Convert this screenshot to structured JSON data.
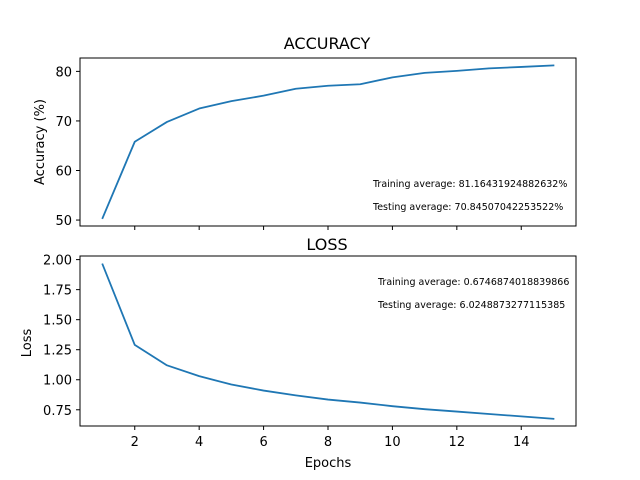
{
  "chart_data": [
    {
      "type": "line",
      "title": "ACCURACY",
      "xlabel": "",
      "ylabel": "Accuracy (%)",
      "x": [
        1,
        2,
        3,
        4,
        5,
        6,
        7,
        8,
        9,
        10,
        11,
        12,
        13,
        14,
        15
      ],
      "series": [
        {
          "values": [
            50.4,
            65.8,
            69.8,
            72.5,
            74.0,
            75.1,
            76.5,
            77.1,
            77.4,
            78.8,
            79.7,
            80.1,
            80.6,
            80.9,
            81.2
          ],
          "color": "#1f77b4"
        }
      ],
      "xlim": [
        0.3,
        15.7
      ],
      "ylim": [
        48.8,
        82.7
      ],
      "xticks": [
        2,
        4,
        6,
        8,
        10,
        12,
        14
      ],
      "yticks": [
        50,
        60,
        70,
        80
      ],
      "show_xtick_labels": false,
      "grid": false,
      "annotations": [
        "Training average: 81.16431924882632%",
        "Testing average: 70.84507042253522%"
      ]
    },
    {
      "type": "line",
      "title": "LOSS",
      "xlabel": "Epochs",
      "ylabel": "Loss",
      "x": [
        1,
        2,
        3,
        4,
        5,
        6,
        7,
        8,
        9,
        10,
        11,
        12,
        13,
        14,
        15
      ],
      "series": [
        {
          "values": [
            1.96,
            1.29,
            1.12,
            1.03,
            0.96,
            0.91,
            0.87,
            0.835,
            0.81,
            0.78,
            0.755,
            0.735,
            0.715,
            0.695,
            0.675
          ],
          "color": "#1f77b4"
        }
      ],
      "xlim": [
        0.3,
        15.7
      ],
      "ylim": [
        0.615,
        2.03
      ],
      "xticks": [
        2,
        4,
        6,
        8,
        10,
        12,
        14
      ],
      "yticks": [
        0.75,
        1.0,
        1.25,
        1.5,
        1.75,
        2.0
      ],
      "ytick_labels": [
        "0.75",
        "1.00",
        "1.25",
        "1.50",
        "1.75",
        "2.00"
      ],
      "show_xtick_labels": true,
      "grid": false,
      "annotations": [
        "Training average: 0.6746874018839866",
        "Testing average: 6.0248873277115385"
      ]
    }
  ]
}
